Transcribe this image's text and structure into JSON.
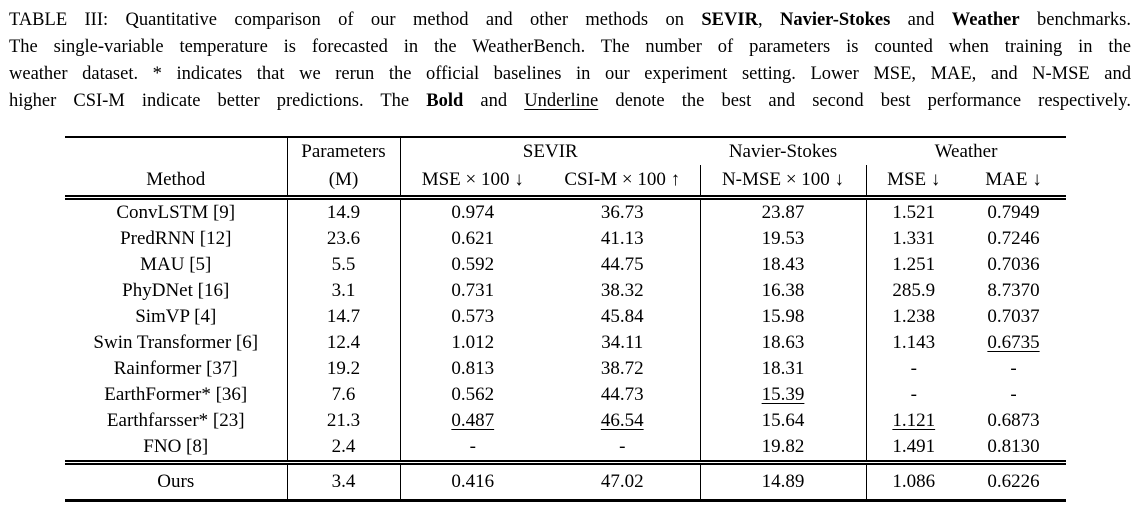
{
  "caption": {
    "lines": [
      [
        {
          "t": "TABLE III: Quantitative comparison of our method and other methods on "
        },
        {
          "t": "SEVIR",
          "b": true
        },
        {
          "t": ", "
        },
        {
          "t": "Navier-Stokes",
          "b": true
        },
        {
          "t": " and "
        },
        {
          "t": "Weather",
          "b": true
        },
        {
          "t": " benchmarks."
        }
      ],
      [
        {
          "t": "The single-variable temperature is forecasted in the WeatherBench. The number of parameters is counted when training in the"
        }
      ],
      [
        {
          "t": "weather dataset. * indicates that we rerun the official baselines in our experiment setting. Lower MSE, MAE, and N-MSE and"
        }
      ],
      [
        {
          "t": "higher CSI-M indicate better predictions. The "
        },
        {
          "t": "Bold",
          "b": true
        },
        {
          "t": " and "
        },
        {
          "t": "Underline",
          "u": true
        },
        {
          "t": " denote the best and second best performance respectively."
        }
      ]
    ]
  },
  "table": {
    "header": {
      "group": {
        "parameters": "Parameters",
        "sevir": "SEVIR",
        "navier_stokes": "Navier-Stokes",
        "weather": "Weather"
      },
      "cols": {
        "method": "Method",
        "params_m": "(M)",
        "sevir_mse": "MSE × 100 ↓",
        "sevir_csi": "CSI-M × 100 ↑",
        "ns_nmse": "N-MSE × 100 ↓",
        "w_mse": "MSE ↓",
        "w_mae": "MAE ↓"
      }
    },
    "rows": [
      {
        "cells": [
          {
            "v": "ConvLSTM [9]"
          },
          {
            "v": "14.9"
          },
          {
            "v": "0.974"
          },
          {
            "v": "36.73"
          },
          {
            "v": "23.87"
          },
          {
            "v": "1.521"
          },
          {
            "v": "0.7949"
          }
        ]
      },
      {
        "cells": [
          {
            "v": "PredRNN [12]"
          },
          {
            "v": "23.6"
          },
          {
            "v": "0.621"
          },
          {
            "v": "41.13"
          },
          {
            "v": "19.53"
          },
          {
            "v": "1.331"
          },
          {
            "v": "0.7246"
          }
        ]
      },
      {
        "cells": [
          {
            "v": "MAU [5]"
          },
          {
            "v": "5.5"
          },
          {
            "v": "0.592"
          },
          {
            "v": "44.75"
          },
          {
            "v": "18.43"
          },
          {
            "v": "1.251"
          },
          {
            "v": "0.7036"
          }
        ]
      },
      {
        "cells": [
          {
            "v": "PhyDNet [16]"
          },
          {
            "v": "3.1"
          },
          {
            "v": "0.731"
          },
          {
            "v": "38.32"
          },
          {
            "v": "16.38"
          },
          {
            "v": "285.9"
          },
          {
            "v": "8.7370"
          }
        ]
      },
      {
        "cells": [
          {
            "v": "SimVP [4]"
          },
          {
            "v": "14.7"
          },
          {
            "v": "0.573"
          },
          {
            "v": "45.84"
          },
          {
            "v": "15.98"
          },
          {
            "v": "1.238"
          },
          {
            "v": "0.7037"
          }
        ]
      },
      {
        "cells": [
          {
            "v": "Swin Transformer [6]"
          },
          {
            "v": "12.4"
          },
          {
            "v": "1.012"
          },
          {
            "v": "34.11"
          },
          {
            "v": "18.63"
          },
          {
            "v": "1.143"
          },
          {
            "v": "0.6735",
            "u": true
          }
        ]
      },
      {
        "cells": [
          {
            "v": "Rainformer [37]"
          },
          {
            "v": "19.2"
          },
          {
            "v": "0.813"
          },
          {
            "v": "38.72"
          },
          {
            "v": "18.31"
          },
          {
            "v": "-"
          },
          {
            "v": "-"
          }
        ]
      },
      {
        "cells": [
          {
            "v": "EarthFormer* [36]"
          },
          {
            "v": "7.6"
          },
          {
            "v": "0.562"
          },
          {
            "v": "44.73"
          },
          {
            "v": "15.39",
            "u": true
          },
          {
            "v": "-"
          },
          {
            "v": "-"
          }
        ]
      },
      {
        "cells": [
          {
            "v": "Earthfarsser* [23]"
          },
          {
            "v": "21.3"
          },
          {
            "v": "0.487",
            "u": true
          },
          {
            "v": "46.54",
            "u": true
          },
          {
            "v": "15.64"
          },
          {
            "v": "1.121",
            "u": true
          },
          {
            "v": "0.6873"
          }
        ]
      },
      {
        "cells": [
          {
            "v": "FNO [8]"
          },
          {
            "v": "2.4"
          },
          {
            "v": "-"
          },
          {
            "v": "-"
          },
          {
            "v": "19.82"
          },
          {
            "v": "1.491"
          },
          {
            "v": "0.8130"
          }
        ]
      }
    ],
    "ours": {
      "cells": [
        {
          "v": "Ours"
        },
        {
          "v": "3.4"
        },
        {
          "v": "0.416",
          "b": true
        },
        {
          "v": "47.02",
          "b": true
        },
        {
          "v": "14.89",
          "b": true
        },
        {
          "v": "1.086",
          "b": true
        },
        {
          "v": "0.6226",
          "b": true
        }
      ]
    }
  },
  "chart_data": {
    "type": "table",
    "title": "TABLE III: Quantitative comparison on SEVIR, Navier-Stokes and Weather benchmarks",
    "columns": [
      "Method",
      "Parameters (M)",
      "SEVIR MSE × 100 ↓",
      "SEVIR CSI-M × 100 ↑",
      "Navier-Stokes N-MSE × 100 ↓",
      "Weather MSE ↓",
      "Weather MAE ↓"
    ],
    "rows": [
      [
        "ConvLSTM [9]",
        14.9,
        0.974,
        36.73,
        23.87,
        1.521,
        0.7949
      ],
      [
        "PredRNN [12]",
        23.6,
        0.621,
        41.13,
        19.53,
        1.331,
        0.7246
      ],
      [
        "MAU [5]",
        5.5,
        0.592,
        44.75,
        18.43,
        1.251,
        0.7036
      ],
      [
        "PhyDNet [16]",
        3.1,
        0.731,
        38.32,
        16.38,
        285.9,
        8.737
      ],
      [
        "SimVP [4]",
        14.7,
        0.573,
        45.84,
        15.98,
        1.238,
        0.7037
      ],
      [
        "Swin Transformer [6]",
        12.4,
        1.012,
        34.11,
        18.63,
        1.143,
        0.6735
      ],
      [
        "Rainformer [37]",
        19.2,
        0.813,
        38.72,
        18.31,
        null,
        null
      ],
      [
        "EarthFormer* [36]",
        7.6,
        0.562,
        44.73,
        15.39,
        null,
        null
      ],
      [
        "Earthfarsser* [23]",
        21.3,
        0.487,
        46.54,
        15.64,
        1.121,
        0.6873
      ],
      [
        "FNO [8]",
        2.4,
        null,
        null,
        19.82,
        1.491,
        0.813
      ],
      [
        "Ours",
        3.4,
        0.416,
        47.02,
        14.89,
        1.086,
        0.6226
      ]
    ],
    "best_row": "Ours",
    "second_best": {
      "SEVIR MSE × 100": 0.487,
      "SEVIR CSI-M × 100": 46.54,
      "Navier-Stokes N-MSE × 100": 15.39,
      "Weather MSE": 1.121,
      "Weather MAE": 0.6735
    }
  }
}
